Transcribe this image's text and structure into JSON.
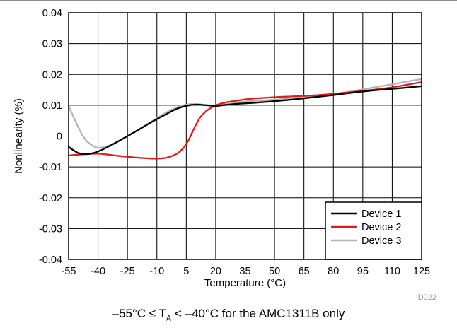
{
  "figure_id": "D022",
  "caption": {
    "prefix": "–55°C ≤ T",
    "subscript": "A",
    "suffix": " < –40°C for the AMC1311B only"
  },
  "chart_data": {
    "type": "line",
    "title": "",
    "xlabel": "Temperature (°C)",
    "ylabel": "Nonlinearity (%)",
    "xlim": [
      -55,
      125
    ],
    "ylim": [
      -0.04,
      0.04
    ],
    "x_ticks": [
      -55,
      -40,
      -25,
      -10,
      5,
      20,
      35,
      50,
      65,
      80,
      95,
      110,
      125
    ],
    "x_tick_labels": [
      "-55",
      "-40",
      "-25",
      "-10",
      "5",
      "20",
      "35",
      "50",
      "65",
      "80",
      "95",
      "110",
      "125"
    ],
    "y_ticks": [
      -0.04,
      -0.03,
      -0.02,
      -0.01,
      0,
      0.01,
      0.02,
      0.03,
      0.04
    ],
    "y_tick_labels": [
      "-0.04",
      "-0.03",
      "-0.02",
      "-0.01",
      "0",
      "0.01",
      "0.02",
      "0.03",
      "0.04"
    ],
    "grid": true,
    "legend_position": "bottom-right",
    "series": [
      {
        "name": "Device 1",
        "color": "#000000",
        "x": [
          -55,
          -50,
          -45,
          -40,
          -35,
          -30,
          -25,
          -20,
          -15,
          -10,
          -5,
          0,
          5,
          10,
          15,
          20,
          25,
          30,
          35,
          40,
          50,
          60,
          70,
          80,
          90,
          100,
          110,
          125
        ],
        "y": [
          -0.0035,
          -0.0055,
          -0.0058,
          -0.005,
          -0.0035,
          -0.0018,
          0.0,
          0.0018,
          0.0037,
          0.0055,
          0.0072,
          0.0088,
          0.0098,
          0.0102,
          0.01,
          0.0098,
          0.0101,
          0.0104,
          0.0106,
          0.0108,
          0.0113,
          0.0119,
          0.0126,
          0.0133,
          0.0141,
          0.0148,
          0.0153,
          0.0162
        ]
      },
      {
        "name": "Device 2",
        "color": "#e21b1b",
        "x": [
          -55,
          -50,
          -45,
          -40,
          -35,
          -30,
          -25,
          -20,
          -15,
          -10,
          -5,
          0,
          3,
          6,
          9,
          12,
          15,
          18,
          21,
          25,
          30,
          35,
          40,
          50,
          60,
          70,
          80,
          90,
          100,
          110,
          125
        ],
        "y": [
          -0.0063,
          -0.006,
          -0.0058,
          -0.0057,
          -0.006,
          -0.0064,
          -0.0067,
          -0.007,
          -0.0072,
          -0.0073,
          -0.007,
          -0.0058,
          -0.0042,
          -0.0015,
          0.0025,
          0.006,
          0.008,
          0.0093,
          0.0102,
          0.0109,
          0.0114,
          0.0119,
          0.0122,
          0.0126,
          0.0129,
          0.0132,
          0.0137,
          0.0143,
          0.015,
          0.0158,
          0.0175
        ]
      },
      {
        "name": "Device 3",
        "color": "#b4b4b4",
        "x": [
          -55,
          -52,
          -49,
          -46,
          -43,
          -40,
          -35,
          -30,
          -25,
          -20,
          -15,
          -10,
          -5,
          0,
          5,
          10,
          15,
          20,
          25,
          30,
          35,
          40,
          50,
          60,
          70,
          80,
          90,
          100,
          110,
          125
        ],
        "y": [
          0.0098,
          0.0055,
          0.0015,
          -0.0015,
          -0.003,
          -0.0038,
          -0.0032,
          -0.0018,
          0.0,
          0.0018,
          0.0038,
          0.0058,
          0.0077,
          0.0092,
          0.0102,
          0.0104,
          0.0101,
          0.0099,
          0.0103,
          0.0108,
          0.0112,
          0.0114,
          0.0118,
          0.0123,
          0.0129,
          0.0136,
          0.0146,
          0.0157,
          0.0168,
          0.0185
        ]
      }
    ]
  }
}
